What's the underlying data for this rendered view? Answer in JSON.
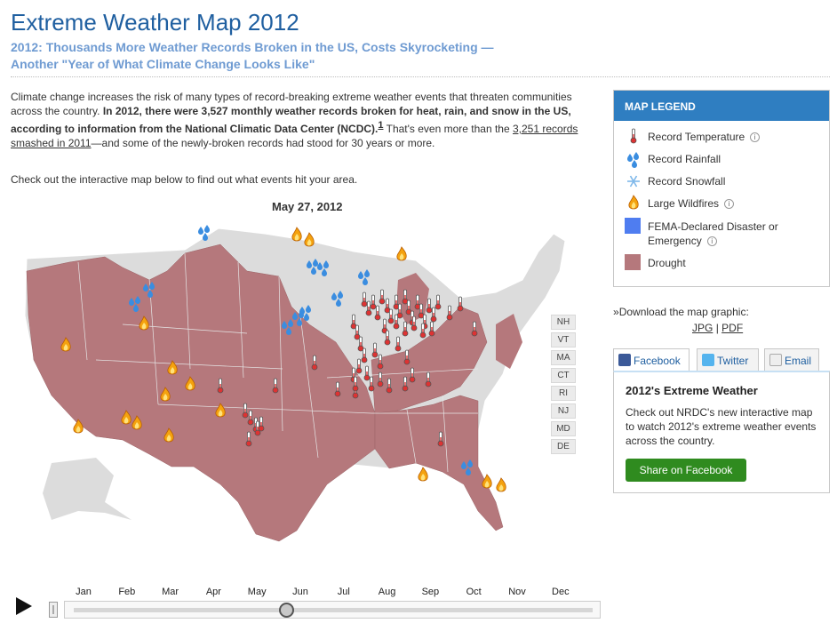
{
  "header": {
    "title": "Extreme Weather Map 2012",
    "subtitle_line1": "2012: Thousands More Weather Records Broken in the US, Costs Skyrocketing —",
    "subtitle_line2": "Another \"Year of What Climate Change Looks Like\""
  },
  "intro": {
    "part1": "Climate change increases the risk of many types of record-breaking extreme weather events that threaten communities across the country. ",
    "bold": "In 2012, there were 3,527 monthly weather records broken for heat, rain, and snow in the US, according to information from the National Climatic Data Center (NCDC).",
    "footnote": "1",
    "part2": " That's even more than the ",
    "link": "3,251 records smashed in 2011",
    "part3": "—and some of the newly-broken records had stood for 30 years or more.",
    "cta": "Check out the interactive map below to find out what events hit your area."
  },
  "map": {
    "date": "May 27, 2012",
    "drought_color": "#b5787c",
    "land_color": "#dcdcdc",
    "east_states": [
      "NH",
      "VT",
      "MA",
      "CT",
      "RI",
      "NJ",
      "MD",
      "DE"
    ]
  },
  "timeline": {
    "months": [
      "Jan",
      "Feb",
      "Mar",
      "Apr",
      "May",
      "Jun",
      "Jul",
      "Aug",
      "Sep",
      "Oct",
      "Nov",
      "Dec"
    ],
    "progress": 0.41
  },
  "legend": {
    "title": "MAP LEGEND",
    "items": [
      {
        "label": "Record Temperature",
        "icon": "thermometer-icon"
      },
      {
        "label": "Record Rainfall",
        "icon": "raindrops-icon"
      },
      {
        "label": "Record Snowfall",
        "icon": "snowflake-icon"
      },
      {
        "label": "Large Wildfires",
        "icon": "flame-icon"
      },
      {
        "label": "FEMA-Declared Disaster or",
        "label2": "Emergency",
        "icon": "fema-swatch",
        "color": "#4f7df0"
      },
      {
        "label": "Drought",
        "icon": "drought-swatch",
        "color": "#b5787c"
      }
    ],
    "info_glyph": "i"
  },
  "download": {
    "prefix": "»",
    "text": "Download the map graphic:",
    "jpg": "JPG",
    "sep": "|",
    "pdf": "PDF"
  },
  "share": {
    "tabs": [
      "Facebook",
      "Twitter",
      "Email"
    ],
    "heading": "2012's Extreme Weather",
    "body": "Check out NRDC's new interactive map to watch 2012's extreme weather events across the country.",
    "button": "Share on Facebook"
  }
}
